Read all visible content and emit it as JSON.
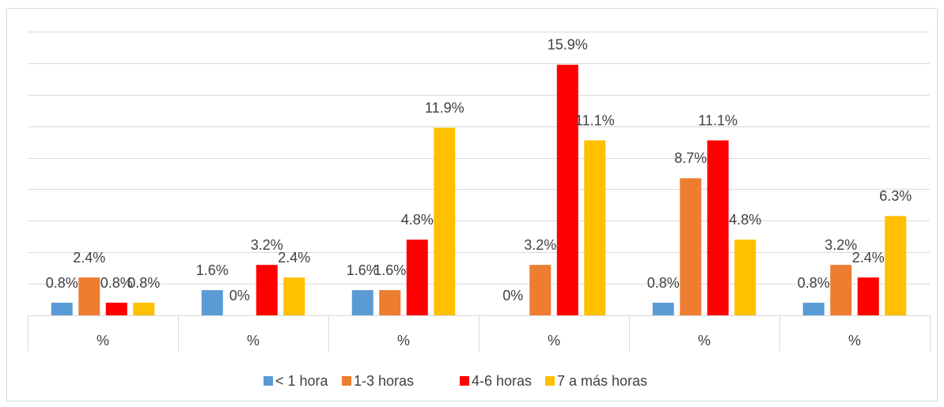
{
  "chart_data": {
    "type": "bar",
    "categories": [
      "%",
      "%",
      "%",
      "%",
      "%",
      "%"
    ],
    "series": [
      {
        "name": "< 1 hora",
        "color": "#5b9bd5",
        "values": [
          0.8,
          1.6,
          1.6,
          0,
          0.8,
          0.8
        ],
        "value_labels": [
          "0.8%",
          "1.6%",
          "1.6%",
          "0%",
          "0.8%",
          "0.8%"
        ]
      },
      {
        "name": "1-3 horas",
        "color": "#ed7d31",
        "values": [
          2.4,
          0,
          1.6,
          3.2,
          8.7,
          3.2
        ],
        "value_labels": [
          "2.4%",
          "0%",
          "1.6%",
          "3.2%",
          "8.7%",
          "3.2%"
        ]
      },
      {
        "name": "4-6 horas",
        "color": "#ff0000",
        "values": [
          0.8,
          3.2,
          4.8,
          15.9,
          11.1,
          2.4
        ],
        "value_labels": [
          "0.8%",
          "3.2%",
          "4.8%",
          "15.9%",
          "11.1%",
          "2.4%"
        ]
      },
      {
        "name": "7 a más horas",
        "color": "#ffc000",
        "values": [
          0.8,
          2.4,
          11.9,
          11.1,
          4.8,
          6.3
        ],
        "value_labels": [
          "0.8%",
          "2.4%",
          "11.9%",
          "11.1%",
          "4.8%",
          "6.3%"
        ]
      }
    ],
    "ylim": [
      0,
      18
    ],
    "yticks": [
      0,
      2,
      4,
      6,
      8,
      10,
      12,
      14,
      16,
      18
    ],
    "grid": true,
    "legend": "bottom"
  }
}
